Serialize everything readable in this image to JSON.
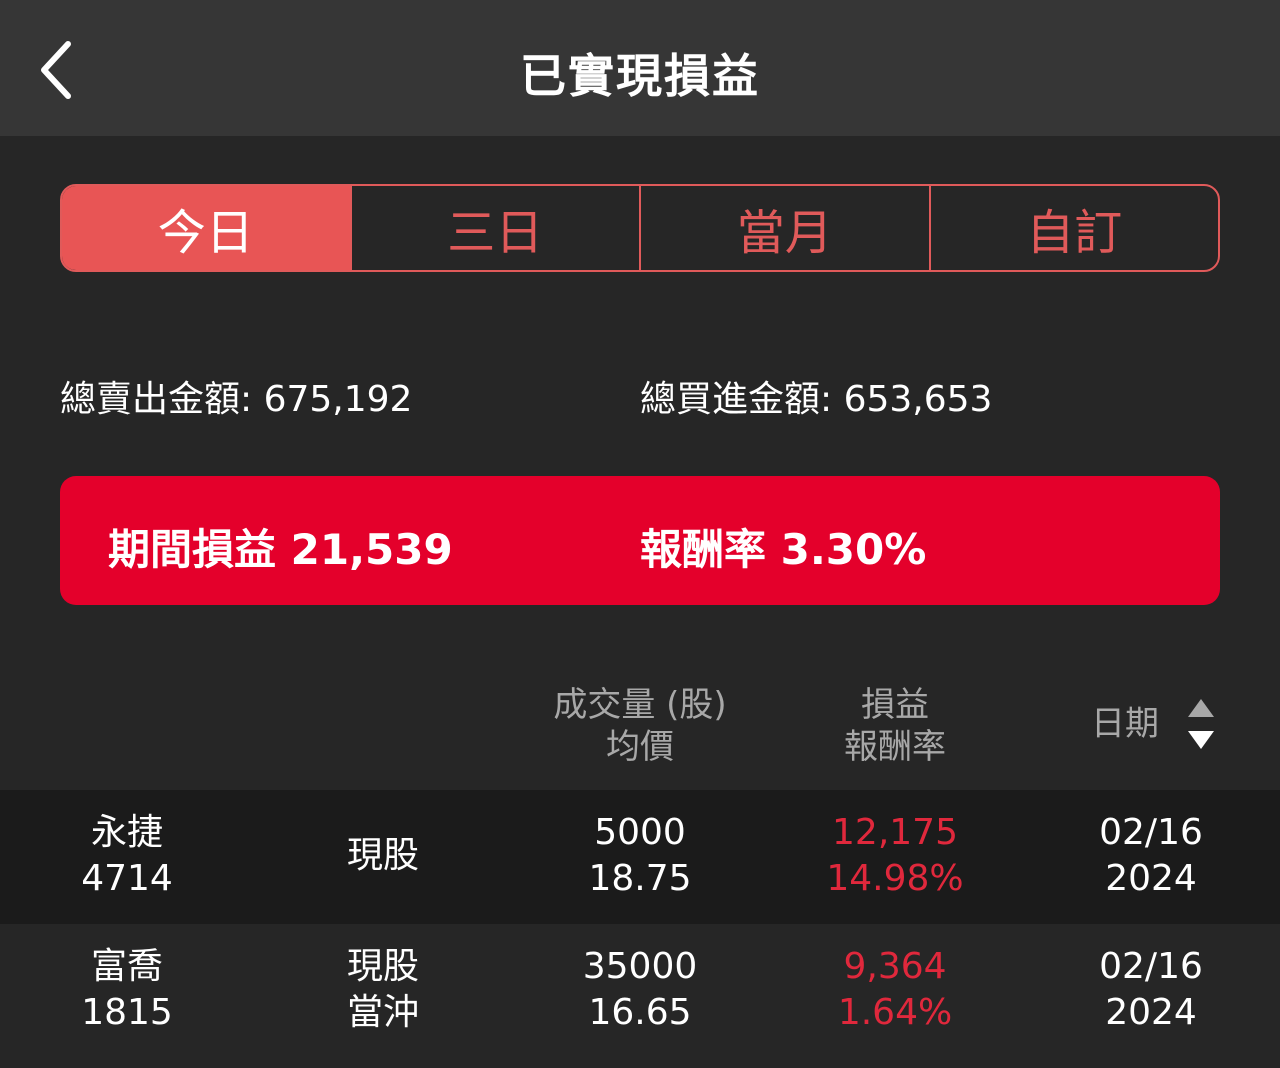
{
  "header": {
    "title": "已實現損益",
    "back_icon": "chevron-left-icon"
  },
  "tabs": [
    {
      "label": "今日",
      "active": true
    },
    {
      "label": "三日",
      "active": false
    },
    {
      "label": "當月",
      "active": false
    },
    {
      "label": "自訂",
      "active": false
    }
  ],
  "totals": {
    "sell": "總賣出金額: 675,192",
    "buy": "總買進金額: 653,653"
  },
  "summary": {
    "pnl": "期間損益 21,539",
    "return": "報酬率 3.30%"
  },
  "table": {
    "headers": {
      "volume": "成交量 (股)",
      "avg_price": "均價",
      "pnl": "損益",
      "return": "報酬率",
      "date": "日期"
    },
    "rows": [
      {
        "name": "永捷",
        "code": "4714",
        "type1": "現股",
        "type2": "",
        "volume": "5000",
        "avg": "18.75",
        "pnl": "12,175",
        "ret": "14.98%",
        "md": "02/16",
        "year": "2024"
      },
      {
        "name": "富喬",
        "code": "1815",
        "type1": "現股",
        "type2": "當沖",
        "volume": "35000",
        "avg": "16.65",
        "pnl": "9,364",
        "ret": "1.64%",
        "md": "02/16",
        "year": "2024"
      }
    ]
  },
  "colors": {
    "accent": "#e85555",
    "banner": "#e4002b",
    "profit": "#e0283c"
  }
}
